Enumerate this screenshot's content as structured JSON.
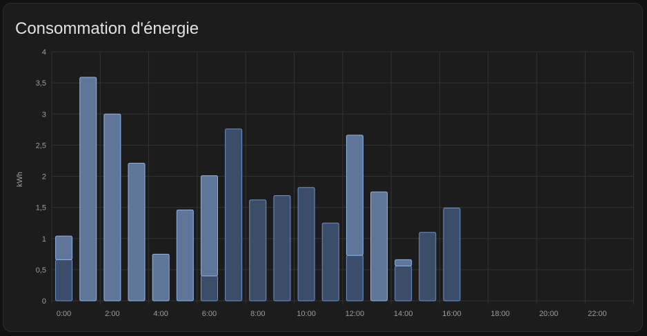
{
  "card": {
    "title": "Consommation d'énergie"
  },
  "colors": {
    "background": "#1c1c1c",
    "grid": "#333333",
    "tick_label": "#9e9e9e",
    "bar_light_fill": "#5f7699",
    "bar_light_stroke": "#8fb4ea",
    "bar_dark_fill": "#3b4d68",
    "bar_dark_stroke": "#6d93cc"
  },
  "chart_data": {
    "type": "bar",
    "title": "",
    "xlabel": "",
    "ylabel": "kWh",
    "ylim": [
      0,
      4
    ],
    "yticks": [
      0,
      0.5,
      1,
      1.5,
      2,
      2.5,
      3,
      3.5,
      4
    ],
    "ytick_labels": [
      "0",
      "0,5",
      "1",
      "1,5",
      "2",
      "2,5",
      "3",
      "3,5",
      "4"
    ],
    "categories": [
      "0:00",
      "1:00",
      "2:00",
      "3:00",
      "4:00",
      "5:00",
      "6:00",
      "7:00",
      "8:00",
      "9:00",
      "10:00",
      "11:00",
      "12:00",
      "13:00",
      "14:00",
      "15:00",
      "16:00",
      "17:00",
      "18:00",
      "19:00",
      "20:00",
      "21:00",
      "22:00",
      "23:00"
    ],
    "xtick_labels": [
      "0:00",
      "2:00",
      "4:00",
      "6:00",
      "8:00",
      "10:00",
      "12:00",
      "14:00",
      "16:00",
      "18:00",
      "20:00",
      "22:00"
    ],
    "stacked": true,
    "grid": true,
    "series": [
      {
        "style": "dark",
        "values": [
          0.66,
          0,
          0,
          0,
          0,
          0,
          0.4,
          2.76,
          1.62,
          1.69,
          1.82,
          1.25,
          0.73,
          0,
          0.56,
          1.1,
          1.49,
          null,
          null,
          null,
          null,
          null,
          null,
          null
        ]
      },
      {
        "style": "light",
        "values": [
          0.38,
          3.59,
          3.0,
          2.21,
          0.75,
          1.46,
          1.61,
          0,
          0,
          0,
          0,
          0,
          1.93,
          1.75,
          0.1,
          0,
          0,
          null,
          null,
          null,
          null,
          null,
          null,
          null
        ]
      }
    ]
  }
}
